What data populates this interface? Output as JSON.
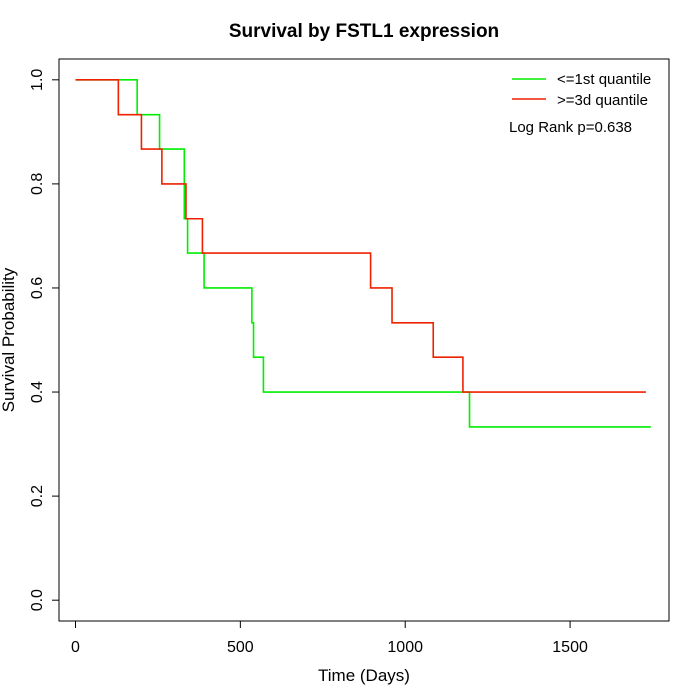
{
  "chart_data": {
    "type": "line",
    "title": "Survival by FSTL1 expression",
    "xlabel": "Time (Days)",
    "ylabel": "Survival Probability",
    "xlim": [
      -50,
      1800
    ],
    "ylim": [
      -0.04,
      1.04
    ],
    "x_ticks": [
      0,
      500,
      1000,
      1500
    ],
    "x_tick_labels": [
      "0",
      "500",
      "1000",
      "1500"
    ],
    "y_ticks": [
      0.0,
      0.2,
      0.4,
      0.6,
      0.8,
      1.0
    ],
    "y_tick_labels": [
      "0.0",
      "0.2",
      "0.4",
      "0.6",
      "0.8",
      "1.0"
    ],
    "grid": false,
    "legend_position": "top-right",
    "annotation": "Log Rank p=0.638",
    "series": [
      {
        "name": "<=1st quantile",
        "color": "#00ee00",
        "step_points": [
          [
            0,
            1.0
          ],
          [
            187,
            1.0
          ],
          [
            187,
            0.933
          ],
          [
            255,
            0.933
          ],
          [
            255,
            0.867
          ],
          [
            330,
            0.867
          ],
          [
            330,
            0.733
          ],
          [
            340,
            0.733
          ],
          [
            340,
            0.667
          ],
          [
            390,
            0.667
          ],
          [
            390,
            0.6
          ],
          [
            535,
            0.6
          ],
          [
            535,
            0.533
          ],
          [
            540,
            0.533
          ],
          [
            540,
            0.467
          ],
          [
            570,
            0.467
          ],
          [
            570,
            0.4
          ],
          [
            1195,
            0.4
          ],
          [
            1195,
            0.333
          ],
          [
            1745,
            0.333
          ]
        ]
      },
      {
        "name": ">=3d quantile",
        "color": "#ee2200",
        "step_points": [
          [
            0,
            1.0
          ],
          [
            130,
            1.0
          ],
          [
            130,
            0.933
          ],
          [
            200,
            0.933
          ],
          [
            200,
            0.867
          ],
          [
            262,
            0.867
          ],
          [
            262,
            0.8
          ],
          [
            335,
            0.8
          ],
          [
            335,
            0.733
          ],
          [
            385,
            0.733
          ],
          [
            385,
            0.667
          ],
          [
            895,
            0.667
          ],
          [
            895,
            0.6
          ],
          [
            960,
            0.6
          ],
          [
            960,
            0.533
          ],
          [
            1085,
            0.533
          ],
          [
            1085,
            0.467
          ],
          [
            1175,
            0.467
          ],
          [
            1175,
            0.4
          ],
          [
            1730,
            0.4
          ]
        ]
      }
    ]
  }
}
